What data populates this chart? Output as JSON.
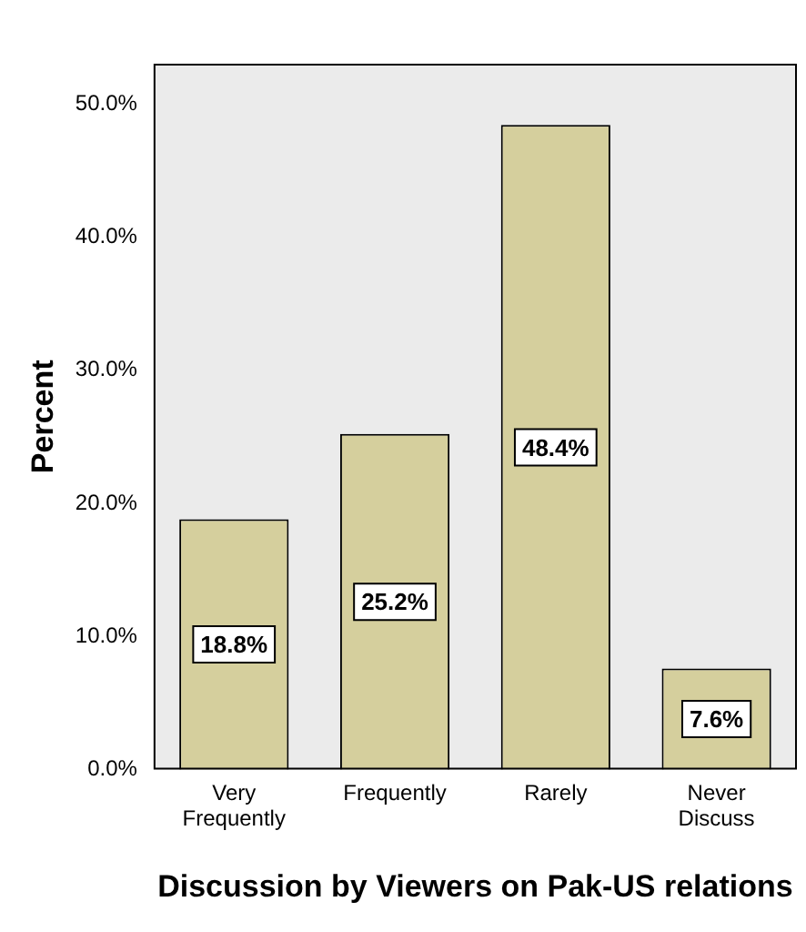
{
  "chart_data": {
    "type": "bar",
    "xlabel": "Discussion by Viewers on Pak-US relations",
    "ylabel": "Percent",
    "categories": [
      "Very Frequently",
      "Frequently",
      "Rarely",
      "Never Discuss"
    ],
    "values": [
      18.8,
      25.2,
      48.4,
      7.6
    ],
    "value_labels": [
      "18.8%",
      "25.2%",
      "48.4%",
      "7.6%"
    ],
    "color": "#d5cf9d",
    "ylim": [
      0,
      53
    ],
    "yticks": [
      {
        "value": 0,
        "label": "0.0%"
      },
      {
        "value": 10,
        "label": "10.0%"
      },
      {
        "value": 20,
        "label": "20.0%"
      },
      {
        "value": 30,
        "label": "30.0%"
      },
      {
        "value": 40,
        "label": "40.0%"
      },
      {
        "value": 50,
        "label": "50.0%"
      }
    ],
    "grid": false,
    "legend": false
  }
}
